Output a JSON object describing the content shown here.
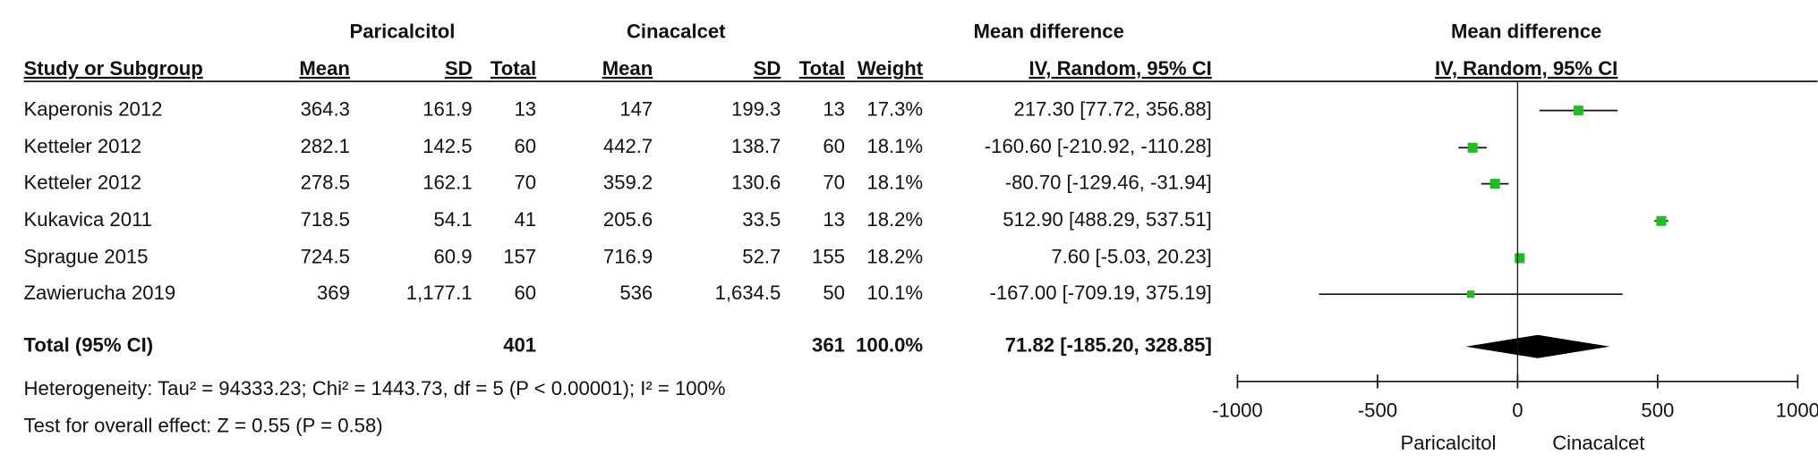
{
  "chart_data": {
    "type": "forest",
    "group_headers": [
      "Paricalcitol",
      "Cinacalcet",
      "Mean difference"
    ],
    "columns": [
      "Study or Subgroup",
      "Mean",
      "SD",
      "Total",
      "Mean",
      "SD",
      "Total",
      "Weight",
      "IV, Random, 95% CI"
    ],
    "plot_title": "Mean difference",
    "plot_subtitle": "IV, Random, 95% CI",
    "rows": [
      {
        "study": "Kaperonis 2012",
        "cells": [
          "364.3",
          "161.9",
          "13",
          "147",
          "199.3",
          "13"
        ],
        "weight": 17.3,
        "weight_label": "17.3%",
        "md": 217.3,
        "lo": 77.72,
        "hi": 356.88,
        "ci_label": "217.30 [77.72, 356.88]"
      },
      {
        "study": "Ketteler  2012",
        "cells": [
          "282.1",
          "142.5",
          "60",
          "442.7",
          "138.7",
          "60"
        ],
        "weight": 18.1,
        "weight_label": "18.1%",
        "md": -160.6,
        "lo": -210.92,
        "hi": -110.28,
        "ci_label": "-160.60 [-210.92, -110.28]"
      },
      {
        "study": "Ketteler 2012",
        "cells": [
          "278.5",
          "162.1",
          "70",
          "359.2",
          "130.6",
          "70"
        ],
        "weight": 18.1,
        "weight_label": "18.1%",
        "md": -80.7,
        "lo": -129.46,
        "hi": -31.94,
        "ci_label": "-80.70 [-129.46, -31.94]"
      },
      {
        "study": "Kukavica 2011",
        "cells": [
          "718.5",
          "54.1",
          "41",
          "205.6",
          "33.5",
          "13"
        ],
        "weight": 18.2,
        "weight_label": "18.2%",
        "md": 512.9,
        "lo": 488.29,
        "hi": 537.51,
        "ci_label": "512.90 [488.29, 537.51]"
      },
      {
        "study": "Sprague 2015",
        "cells": [
          "724.5",
          "60.9",
          "157",
          "716.9",
          "52.7",
          "155"
        ],
        "weight": 18.2,
        "weight_label": "18.2%",
        "md": 7.6,
        "lo": -5.03,
        "hi": 20.23,
        "ci_label": "7.60 [-5.03, 20.23]"
      },
      {
        "study": "Zawierucha 2019",
        "cells": [
          "369",
          "1,177.1",
          "60",
          "536",
          "1,634.5",
          "50"
        ],
        "weight": 10.1,
        "weight_label": "10.1%",
        "md": -167.0,
        "lo": -709.19,
        "hi": 375.19,
        "ci_label": "-167.00 [-709.19, 375.19]"
      }
    ],
    "total": {
      "study": "Total (95% CI)",
      "total_1": "401",
      "total_2": "361",
      "weight": 100.0,
      "weight_label": "100.0%",
      "md": 71.82,
      "lo": -185.2,
      "hi": 328.85,
      "ci_label": "71.82 [-185.20, 328.85]"
    },
    "heterogeneity": "Heterogeneity: Tau² = 94333.23; Chi² = 1443.73, df = 5 (P < 0.00001); I² = 100%",
    "overall_effect": "Test for overall effect: Z = 0.55 (P = 0.58)",
    "xlim": [
      -1000,
      1000
    ],
    "xticks": [
      -1000,
      -500,
      0,
      500,
      1000
    ],
    "favours": [
      "Paricalcitol",
      "Cinacalcet"
    ],
    "color": "#22bb22"
  }
}
